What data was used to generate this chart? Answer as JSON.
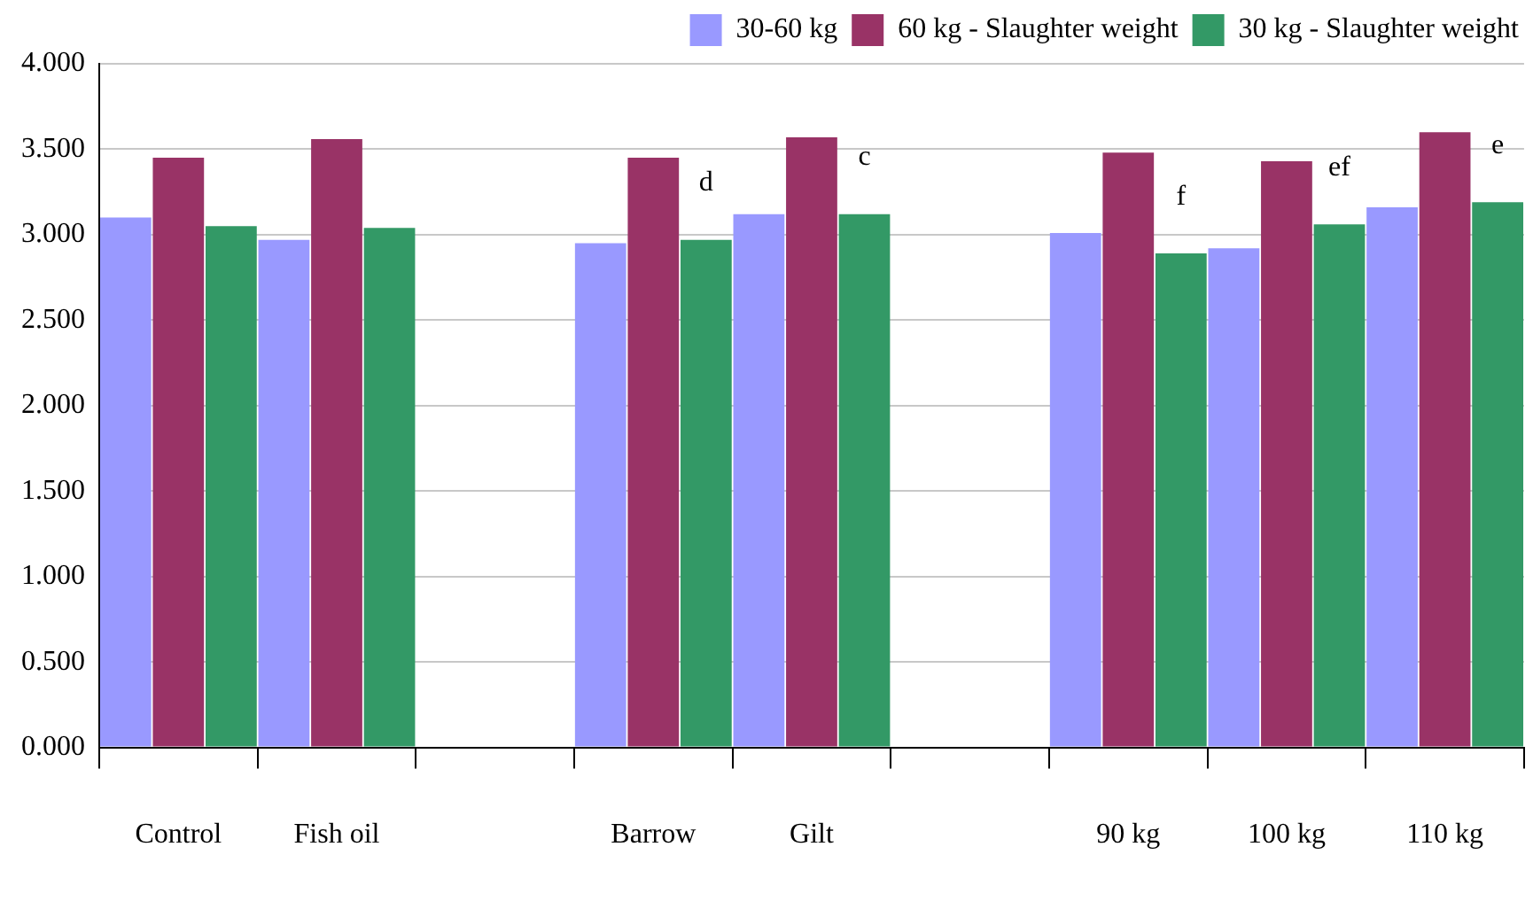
{
  "chart_data": {
    "type": "bar",
    "categories": [
      "Control",
      "Fish oil",
      null,
      "Barrow",
      "Gilt",
      null,
      "90 kg",
      "100 kg",
      "110 kg"
    ],
    "series": [
      {
        "name": "30-60 kg",
        "color": "#9999ff",
        "values": [
          3.1,
          2.97,
          null,
          2.95,
          3.12,
          null,
          3.01,
          2.92,
          3.16
        ]
      },
      {
        "name": "60 kg - Slaughter weight",
        "color": "#993366",
        "values": [
          3.45,
          3.56,
          null,
          3.45,
          3.57,
          null,
          3.48,
          3.43,
          3.6
        ]
      },
      {
        "name": "30 kg - Slaughter weight",
        "color": "#339966",
        "values": [
          3.05,
          3.04,
          null,
          2.97,
          3.12,
          null,
          2.89,
          3.06,
          3.19
        ],
        "value_labels": [
          null,
          null,
          null,
          "d",
          "c",
          null,
          "f",
          "ef",
          "e"
        ]
      }
    ],
    "ylim": [
      0,
      4
    ],
    "yticks": [
      {
        "value": 0,
        "label": "0.000"
      },
      {
        "value": 0.5,
        "label": "0.500"
      },
      {
        "value": 1,
        "label": "1.000"
      },
      {
        "value": 1.5,
        "label": "1.500"
      },
      {
        "value": 2,
        "label": "2.000"
      },
      {
        "value": 2.5,
        "label": "2.500"
      },
      {
        "value": 3,
        "label": "3.000"
      },
      {
        "value": 3.5,
        "label": "3.500"
      },
      {
        "value": 4,
        "label": "4.000"
      }
    ],
    "grid": "y",
    "legend": "top right"
  }
}
